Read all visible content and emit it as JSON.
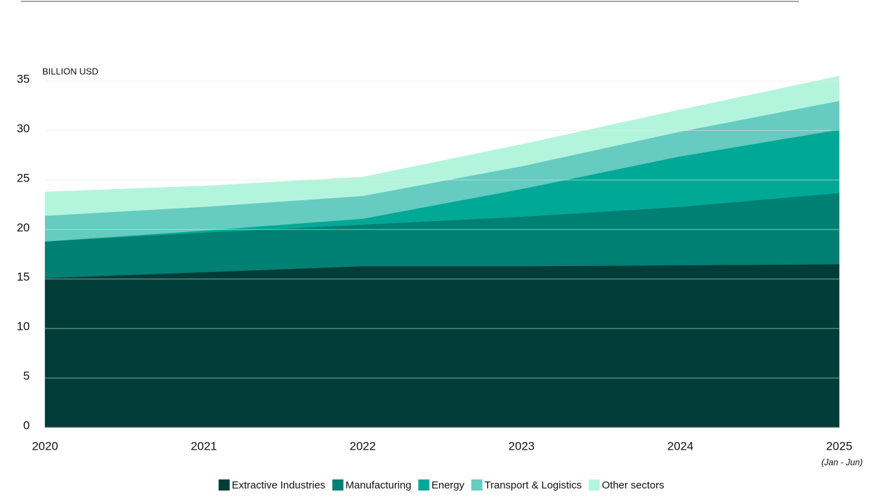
{
  "chart_data": {
    "type": "stacked_area",
    "y_label": "BILLION USD",
    "categories": [
      "2020",
      "2021",
      "2022",
      "2023",
      "2024",
      "2025"
    ],
    "annotation": "(Jan - Jun)",
    "series": [
      {
        "name": "Extractive Industries",
        "color": "#003d38",
        "values": [
          15.1,
          15.7,
          16.3,
          16.3,
          16.4,
          16.5
        ]
      },
      {
        "name": "Manufacturing",
        "color": "#007f73",
        "values": [
          3.7,
          4.0,
          4.2,
          5.0,
          5.9,
          7.2
        ]
      },
      {
        "name": "Energy",
        "color": "#00a896",
        "values": [
          0,
          0.2,
          0.6,
          2.8,
          5.1,
          6.4
        ]
      },
      {
        "name": "Transport & Logistics",
        "color": "#66cbc0",
        "values": [
          2.6,
          2.4,
          2.3,
          2.3,
          2.5,
          2.9
        ]
      },
      {
        "name": "Other sectors",
        "color": "#b3f5dc",
        "values": [
          2.4,
          2.1,
          1.9,
          2.2,
          2.2,
          2.5
        ]
      }
    ],
    "ylim": [
      0,
      35
    ],
    "yticks": [
      0,
      5,
      10,
      15,
      20,
      25,
      30,
      35
    ],
    "grid": true
  }
}
